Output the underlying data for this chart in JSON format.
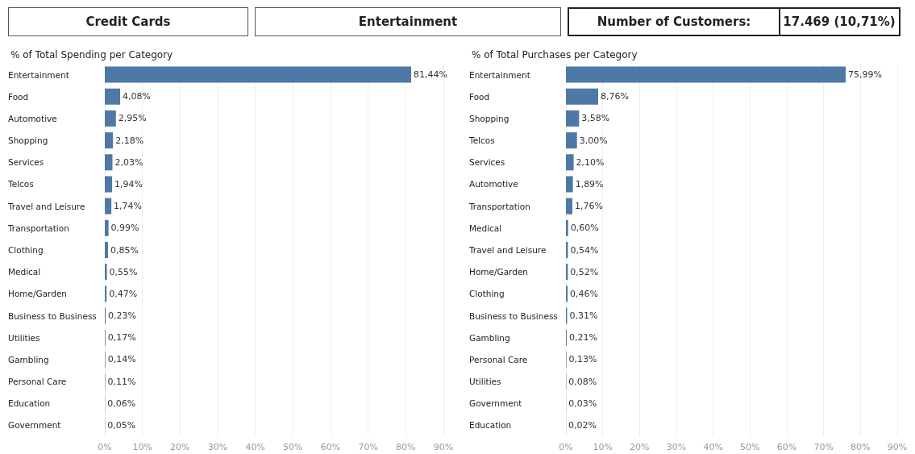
{
  "chart_data": [
    {
      "type": "other",
      "annotations": [
        "Credit Cards",
        "Entertainment",
        "Number of Customers:",
        "17.469 (10,71%)"
      ]
    },
    {
      "type": "bar",
      "orientation": "horizontal",
      "title": "% of Total Spending per Category",
      "color": "#4e79a7",
      "grid": "x",
      "categories": [
        "Entertainment",
        "Food",
        "Automotive",
        "Shopping",
        "Services",
        "Telcos",
        "Travel and Leisure",
        "Transportation",
        "Clothing",
        "Medical",
        "Home/Garden",
        "Business to Business",
        "Utilities",
        "Gambling",
        "Personal Care",
        "Education",
        "Government"
      ],
      "values": [
        81.44,
        4.08,
        2.95,
        2.18,
        2.03,
        1.94,
        1.74,
        0.99,
        0.85,
        0.55,
        0.47,
        0.23,
        0.17,
        0.14,
        0.11,
        0.06,
        0.05
      ],
      "value_labels": [
        "81,44%",
        "4,08%",
        "2,95%",
        "2,18%",
        "2,03%",
        "1,94%",
        "1,74%",
        "0,99%",
        "0,85%",
        "0,55%",
        "0,47%",
        "0,23%",
        "0,17%",
        "0,14%",
        "0,11%",
        "0,06%",
        "0,05%"
      ],
      "xlim": [
        0,
        90
      ],
      "xticks": [
        {
          "value": 0,
          "label": "0%"
        },
        {
          "value": 10,
          "label": "10%"
        },
        {
          "value": 20,
          "label": "20%"
        },
        {
          "value": 30,
          "label": "30%"
        },
        {
          "value": 40,
          "label": "40%"
        },
        {
          "value": 50,
          "label": "50%"
        },
        {
          "value": 60,
          "label": "60%"
        },
        {
          "value": 70,
          "label": "70%"
        },
        {
          "value": 80,
          "label": "80%"
        },
        {
          "value": 90,
          "label": "90%"
        }
      ]
    },
    {
      "type": "bar",
      "orientation": "horizontal",
      "title": "% of Total Purchases per Category",
      "color": "#4e79a7",
      "grid": "x",
      "categories": [
        "Entertainment",
        "Food",
        "Shopping",
        "Telcos",
        "Services",
        "Automotive",
        "Transportation",
        "Medical",
        "Travel and Leisure",
        "Home/Garden",
        "Clothing",
        "Business to Business",
        "Gambling",
        "Personal Care",
        "Utilities",
        "Government",
        "Education"
      ],
      "values": [
        75.99,
        8.76,
        3.58,
        3.0,
        2.1,
        1.89,
        1.76,
        0.6,
        0.54,
        0.52,
        0.46,
        0.31,
        0.21,
        0.13,
        0.08,
        0.03,
        0.02
      ],
      "value_labels": [
        "75,99%",
        "8,76%",
        "3,58%",
        "3,00%",
        "2,10%",
        "1,89%",
        "1,76%",
        "0,60%",
        "0,54%",
        "0,52%",
        "0,46%",
        "0,31%",
        "0,21%",
        "0,13%",
        "0,08%",
        "0,03%",
        "0,02%"
      ],
      "xlim": [
        0,
        90
      ],
      "xticks": [
        {
          "value": 0,
          "label": "0%"
        },
        {
          "value": 10,
          "label": "10%"
        },
        {
          "value": 20,
          "label": "20%"
        },
        {
          "value": 30,
          "label": "30%"
        },
        {
          "value": 40,
          "label": "40%"
        },
        {
          "value": 50,
          "label": "50%"
        },
        {
          "value": 60,
          "label": "60%"
        },
        {
          "value": 70,
          "label": "70%"
        },
        {
          "value": 80,
          "label": "80%"
        },
        {
          "value": 90,
          "label": "90%"
        }
      ]
    }
  ]
}
